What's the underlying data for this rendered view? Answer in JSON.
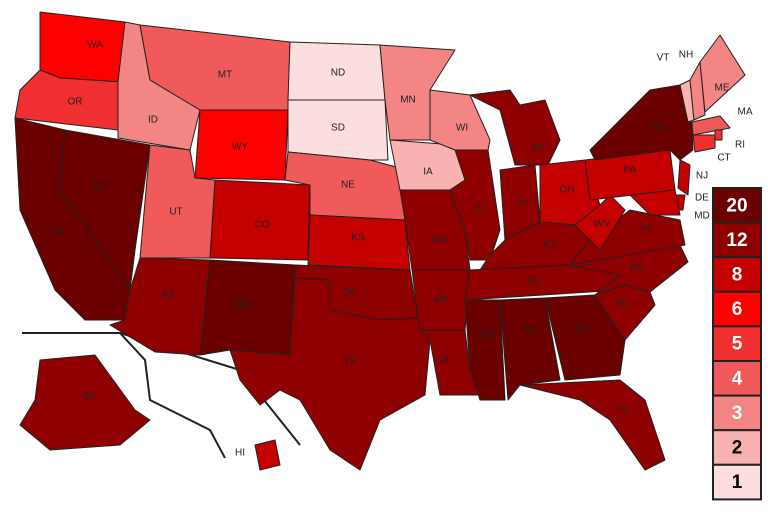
{
  "legend": {
    "values": [
      20,
      12,
      8,
      6,
      5,
      4,
      3,
      2,
      1
    ],
    "colors": [
      "#6b0000",
      "#8f0000",
      "#c40000",
      "#ff0000",
      "#f03030",
      "#f05a5a",
      "#f48585",
      "#f8b2b2",
      "#fcdede"
    ]
  },
  "states": [
    {
      "label": "WA",
      "value": 6
    },
    {
      "label": "OR",
      "value": 5
    },
    {
      "label": "CA",
      "value": 20
    },
    {
      "label": "NV",
      "value": 20
    },
    {
      "label": "ID",
      "value": 3
    },
    {
      "label": "MT",
      "value": 4
    },
    {
      "label": "WY",
      "value": 6
    },
    {
      "label": "UT",
      "value": 4
    },
    {
      "label": "CO",
      "value": 8
    },
    {
      "label": "AZ",
      "value": 12
    },
    {
      "label": "NM",
      "value": 20
    },
    {
      "label": "ND",
      "value": 1
    },
    {
      "label": "SD",
      "value": 1
    },
    {
      "label": "NE",
      "value": 4
    },
    {
      "label": "KS",
      "value": 8
    },
    {
      "label": "OK",
      "value": 12
    },
    {
      "label": "TX",
      "value": 12
    },
    {
      "label": "MN",
      "value": 3
    },
    {
      "label": "IA",
      "value": 2
    },
    {
      "label": "MO",
      "value": 12
    },
    {
      "label": "AR",
      "value": 12
    },
    {
      "label": "LA",
      "value": 12
    },
    {
      "label": "WI",
      "value": 3
    },
    {
      "label": "IL",
      "value": 12
    },
    {
      "label": "MI",
      "value": 12
    },
    {
      "label": "IN",
      "value": 12
    },
    {
      "label": "OH",
      "value": 8
    },
    {
      "label": "KY",
      "value": 12
    },
    {
      "label": "TN",
      "value": 12
    },
    {
      "label": "MS",
      "value": 20
    },
    {
      "label": "AL",
      "value": 20
    },
    {
      "label": "GA",
      "value": 20
    },
    {
      "label": "FL",
      "value": 12
    },
    {
      "label": "SC",
      "value": 12
    },
    {
      "label": "NC",
      "value": 12
    },
    {
      "label": "VA",
      "value": 12
    },
    {
      "label": "WV",
      "value": 8
    },
    {
      "label": "PA",
      "value": 8
    },
    {
      "label": "NY",
      "value": 20
    },
    {
      "label": "VT",
      "value": 2
    },
    {
      "label": "NH",
      "value": 3
    },
    {
      "label": "ME",
      "value": 3
    },
    {
      "label": "MA",
      "value": 4
    },
    {
      "label": "RI",
      "value": 5
    },
    {
      "label": "CT",
      "value": 5
    },
    {
      "label": "NJ",
      "value": 8
    },
    {
      "label": "DE",
      "value": 8
    },
    {
      "label": "MD",
      "value": 8
    },
    {
      "label": "AK",
      "value": 12
    },
    {
      "label": "HI",
      "value": 8
    }
  ]
}
